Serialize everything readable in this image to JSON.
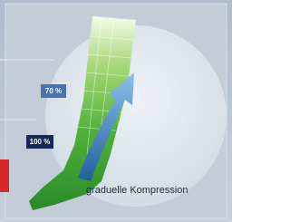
{
  "labels": {
    "upper": "70 %",
    "lower": "100 %"
  },
  "caption": "graduelle Kompression"
}
